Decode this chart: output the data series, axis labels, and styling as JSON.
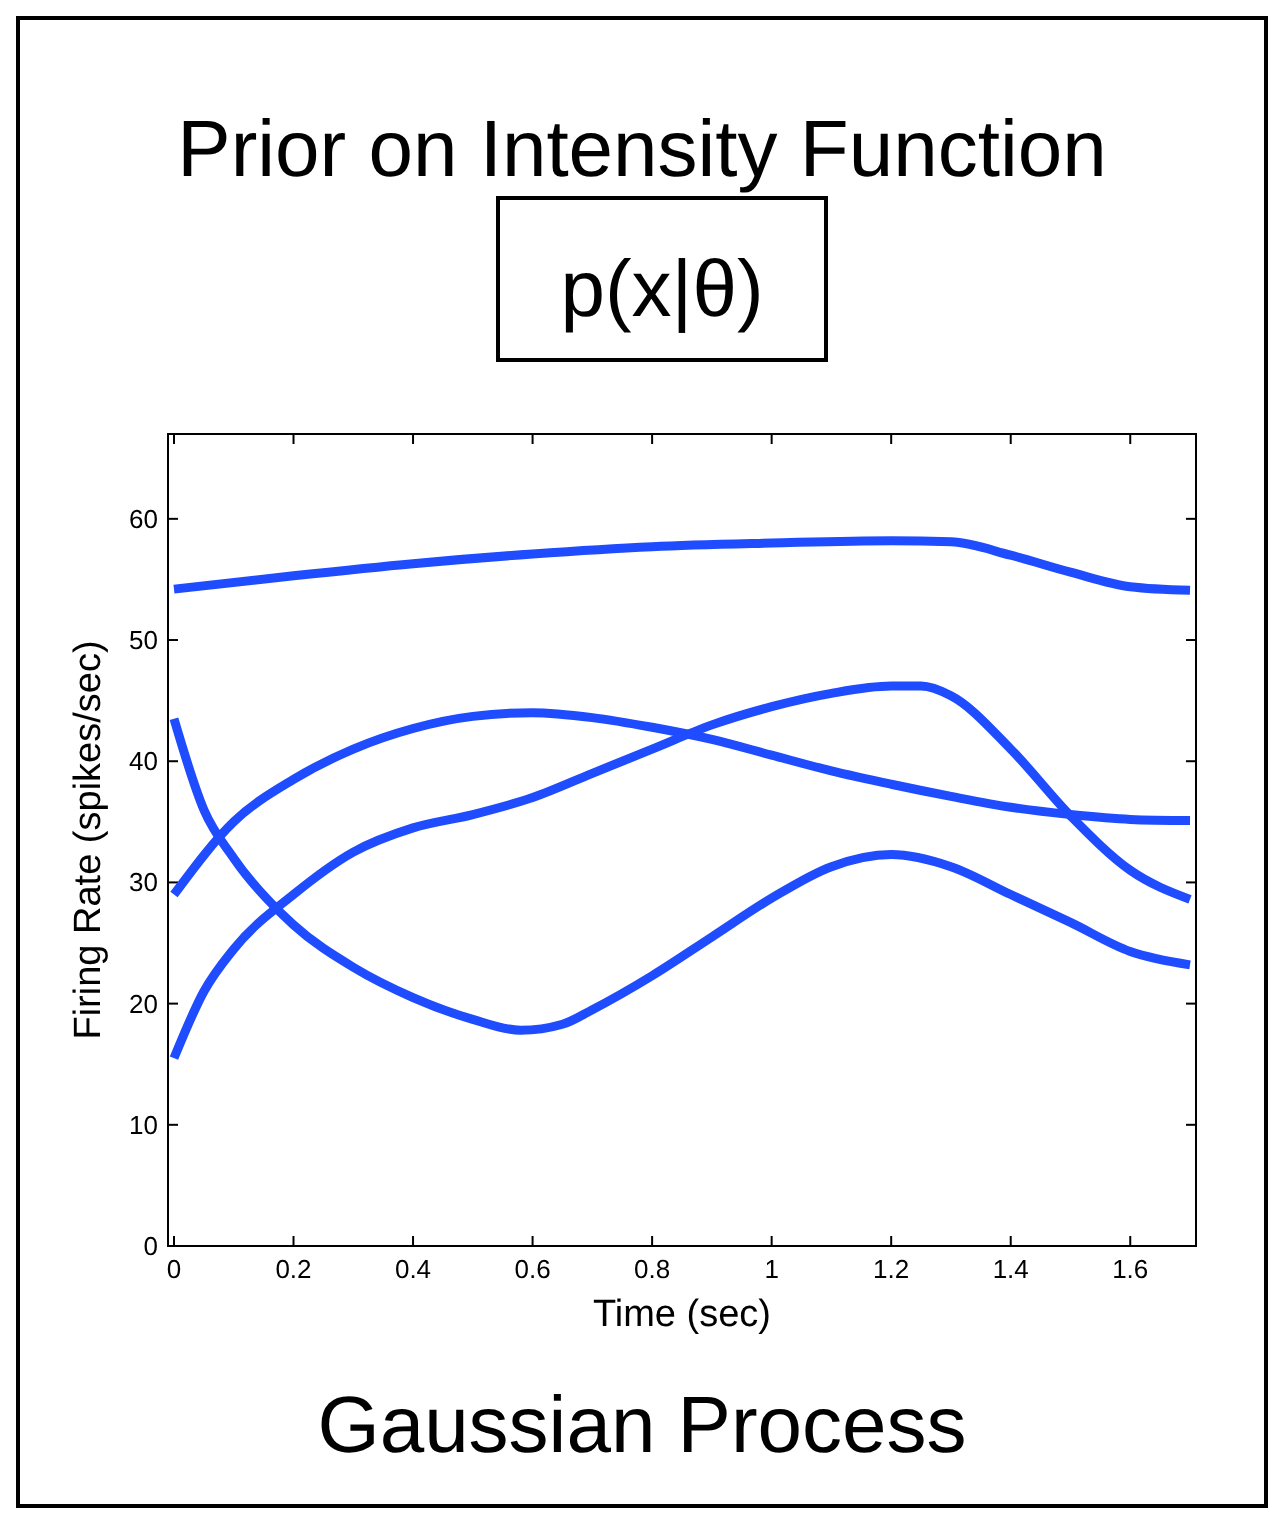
{
  "chart_data": {
    "type": "line",
    "title": "Prior on Intensity Function",
    "subtitle": "p(x|θ)",
    "xlabel": "Time (sec)",
    "ylabel": "Firing Rate (spikes/sec)",
    "annotations": [
      "Gaussian Process"
    ],
    "xlim": [
      -0.01,
      1.71
    ],
    "ylim": [
      0,
      67
    ],
    "xticks": [
      0,
      0.2,
      0.4,
      0.6,
      0.8,
      1,
      1.2,
      1.4,
      1.6
    ],
    "yticks": [
      0,
      10,
      20,
      30,
      40,
      50,
      60
    ],
    "grid": false,
    "marker": "none",
    "line_style": "solid",
    "series": [
      {
        "color": "#1f4cff",
        "x": [
          0,
          0.2,
          0.4,
          0.6,
          0.8,
          1.0,
          1.2,
          1.3,
          1.4,
          1.5,
          1.6,
          1.7
        ],
        "values": [
          54.2,
          55.3,
          56.3,
          57.1,
          57.7,
          58.0,
          58.2,
          58.1,
          57.0,
          55.6,
          54.4,
          54.1
        ]
      },
      {
        "color": "#1f4cff",
        "x": [
          0,
          0.1,
          0.2,
          0.3,
          0.4,
          0.5,
          0.6,
          0.7,
          0.8,
          0.9,
          1.0,
          1.1,
          1.2,
          1.3,
          1.4,
          1.5,
          1.6,
          1.7
        ],
        "values": [
          29,
          35,
          38.5,
          41,
          42.7,
          43.7,
          44,
          43.6,
          42.8,
          41.8,
          40.5,
          39.2,
          38.1,
          37.1,
          36.2,
          35.6,
          35.2,
          35.1
        ]
      },
      {
        "color": "#1f4cff",
        "x": [
          0,
          0.05,
          0.1,
          0.2,
          0.3,
          0.4,
          0.5,
          0.6,
          0.7,
          0.8,
          0.9,
          1.0,
          1.1,
          1.2,
          1.25,
          1.3,
          1.4,
          1.5,
          1.6,
          1.7
        ],
        "values": [
          15.5,
          21,
          24.5,
          29,
          32.5,
          34.5,
          35.6,
          37,
          39,
          41,
          43,
          44.5,
          45.6,
          46.2,
          46.2,
          45.4,
          41,
          35.5,
          31,
          28.6
        ]
      },
      {
        "color": "#1f4cff",
        "x": [
          0,
          0.05,
          0.1,
          0.2,
          0.3,
          0.4,
          0.5,
          0.58,
          0.65,
          0.7,
          0.8,
          0.9,
          1.0,
          1.1,
          1.2,
          1.3,
          1.4,
          1.5,
          1.6,
          1.7
        ],
        "values": [
          43.5,
          36,
          32,
          26.5,
          23,
          20.5,
          18.7,
          17.8,
          18.3,
          19.5,
          22.3,
          25.5,
          28.7,
          31.3,
          32.3,
          31.3,
          29,
          26.7,
          24.3,
          23.2
        ]
      }
    ]
  }
}
